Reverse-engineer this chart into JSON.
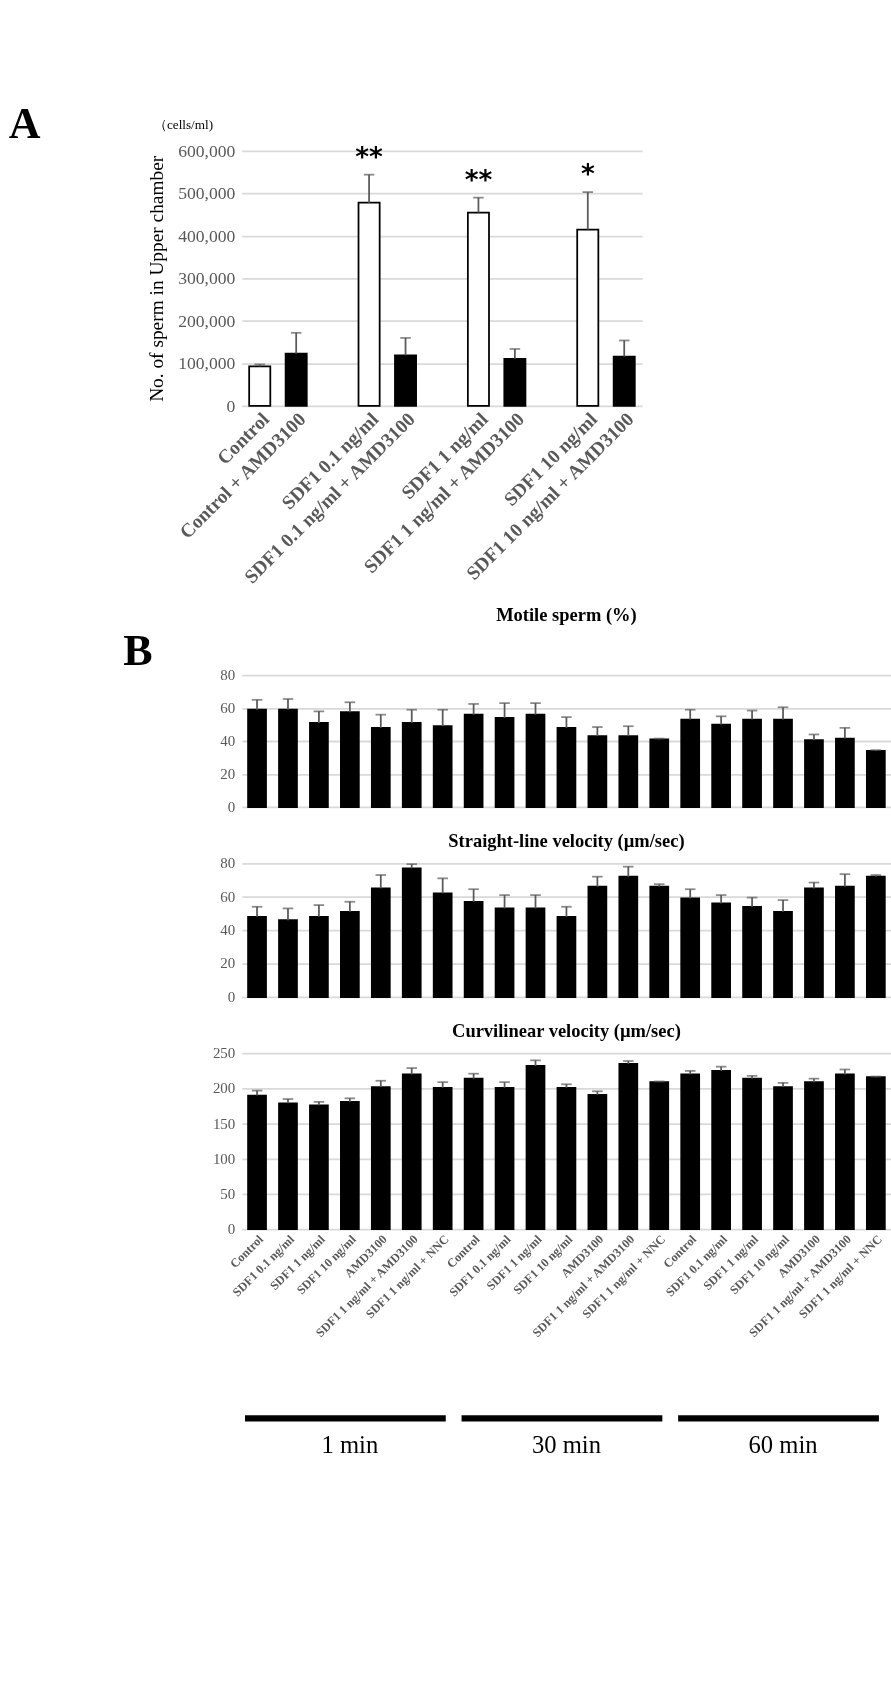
{
  "chart_data": [
    {
      "type": "bar",
      "ylabel": "No. of sperm in Upper chamber",
      "categories": [
        "Control",
        "Control + AMD3100",
        "SDF1 0.1 ng/ml",
        "SDF1 0.1 ng/ml + AMD3100",
        "SDF1 1 ng/ml",
        "SDF1 1 ng/ml + AMD3100",
        "SDF1 10 ng/ml",
        "SDF1 10 ng/ml + AMD3100"
      ],
      "values": [
        93000,
        123000,
        478000,
        119000,
        455000,
        111000,
        415000,
        116000
      ],
      "colors": [
        "#ffffff",
        "#000000",
        "#ffffff",
        "#000000",
        "#ffffff",
        "#000000",
        "#ffffff",
        "#000000"
      ],
      "errors": [
        [
          93000,
          98000
        ],
        [
          123000,
          172000
        ],
        [
          478000,
          544000
        ],
        [
          119000,
          160000
        ],
        [
          455000,
          490000
        ],
        [
          111000,
          134000
        ],
        [
          415000,
          503000
        ],
        [
          116000,
          154000
        ]
      ],
      "ylim": [
        0,
        600000
      ],
      "yticks": [
        0,
        {
          "value": 100000,
          "label": "100,000"
        },
        {
          "value": 200000,
          "label": "200,000"
        },
        {
          "value": 300000,
          "label": "300,000"
        },
        {
          "value": 400000,
          "label": "400,000"
        },
        {
          "value": 500000,
          "label": "500,000"
        },
        {
          "value": 600000,
          "label": "600,000"
        }
      ],
      "grid": "y",
      "annotations": [
        "A",
        "（cells/ml)",
        {
          "text": "**",
          "x": "SDF1 0.1 ng/ml",
          "y": 544000
        },
        {
          "text": "**",
          "x": "SDF1 1 ng/ml",
          "y": 490000
        },
        {
          "text": "*",
          "x": "SDF1 10 ng/ml",
          "y": 503000
        }
      ]
    },
    {
      "type": "bar",
      "title": "Motile sperm (%)",
      "color": "#000000",
      "categories": [
        "Control",
        "SDF1 0.1 ng/ml",
        "SDF1 1 ng/ml",
        "SDF1 10 ng/ml",
        "AMD3100",
        "SDF1 1 ng/ml + AMD3100",
        "SDF1 1 ng/ml + NNC",
        "Control",
        "SDF1 0.1 ng/ml",
        "SDF1 1 ng/ml",
        "SDF1 10 ng/ml",
        "AMD3100",
        "SDF1 1 ng/ml + AMD3100",
        "SDF1 1 ng/ml + NNC",
        "Control",
        "SDF1 0.1 ng/ml",
        "SDF1 1 ng/ml",
        "SDF1 10 ng/ml",
        "AMD3100",
        "SDF1 1 ng/ml + AMD3100",
        "SDF1 1 ng/ml + NNC"
      ],
      "values": [
        59,
        59,
        51,
        57.5,
        48,
        51,
        49,
        56,
        54,
        56,
        48,
        43,
        43,
        41,
        53,
        50,
        53,
        53,
        40.5,
        41.5,
        34
      ],
      "errors": [
        [
          59,
          65
        ],
        [
          59,
          65.5
        ],
        [
          51,
          58
        ],
        [
          57.5,
          63.5
        ],
        [
          48,
          56
        ],
        [
          51,
          59
        ],
        [
          49,
          59
        ],
        [
          56,
          62.5
        ],
        [
          54,
          63
        ],
        [
          56,
          63
        ],
        [
          48,
          54.5
        ],
        [
          43,
          48.5
        ],
        [
          43,
          49
        ],
        [
          41,
          41.5
        ],
        [
          53,
          59
        ],
        [
          50,
          55
        ],
        [
          53,
          58.5
        ],
        [
          53,
          60.5
        ],
        [
          40.5,
          44
        ],
        [
          41.5,
          48
        ],
        [
          34,
          34.5
        ]
      ],
      "ylim": [
        0,
        80
      ],
      "yticks": [
        0,
        20,
        40,
        60,
        80
      ],
      "grid": "y",
      "tick_labels": "y",
      "annotations": [
        "B"
      ]
    },
    {
      "type": "bar",
      "title": "Straight-line velocity (µm/sec)",
      "color": "#000000",
      "categories": [
        "Control",
        "SDF1 0.1 ng/ml",
        "SDF1 1 ng/ml",
        "SDF1 10 ng/ml",
        "AMD3100",
        "SDF1 1 ng/ml + AMD3100",
        "SDF1 1 ng/ml + NNC",
        "Control",
        "SDF1 0.1 ng/ml",
        "SDF1 1 ng/ml",
        "SDF1 10 ng/ml",
        "AMD3100",
        "SDF1 1 ng/ml + AMD3100",
        "SDF1 1 ng/ml + NNC",
        "Control",
        "SDF1 0.1 ng/ml",
        "SDF1 1 ng/ml",
        "SDF1 10 ng/ml",
        "AMD3100",
        "SDF1 1 ng/ml + AMD3100",
        "SDF1 1 ng/ml + NNC"
      ],
      "values": [
        48,
        46,
        48,
        51,
        65,
        77,
        62,
        57,
        53,
        53,
        48,
        66,
        72,
        66,
        59,
        56,
        54,
        51,
        65,
        66,
        72
      ],
      "errors": [
        [
          48,
          54
        ],
        [
          46,
          53
        ],
        [
          48,
          55
        ],
        [
          51,
          57
        ],
        [
          65,
          73
        ],
        [
          77,
          79.5
        ],
        [
          62,
          71
        ],
        [
          57,
          64.5
        ],
        [
          53,
          61
        ],
        [
          53,
          61
        ],
        [
          48,
          54
        ],
        [
          66,
          72
        ],
        [
          72,
          78
        ],
        [
          66,
          67.5
        ],
        [
          59,
          64.5
        ],
        [
          56,
          61
        ],
        [
          54,
          59.5
        ],
        [
          51,
          58
        ],
        [
          65,
          68.5
        ],
        [
          66,
          73.5
        ],
        [
          72,
          73
        ]
      ],
      "ylim": [
        0,
        80
      ],
      "yticks": [
        0,
        20,
        40,
        60,
        80
      ],
      "grid": "y",
      "tick_labels": "y"
    },
    {
      "type": "bar",
      "title": "Curvilinear velocity (µm/sec)",
      "color": "#000000",
      "categories": [
        "Control",
        "SDF1 0.1 ng/ml",
        "SDF1 1 ng/ml",
        "SDF1 10 ng/ml",
        "AMD3100",
        "SDF1 1 ng/ml + AMD3100",
        "SDF1 1 ng/ml + NNC",
        "Control",
        "SDF1 0.1 ng/ml",
        "SDF1 1 ng/ml",
        "SDF1 10 ng/ml",
        "AMD3100",
        "SDF1 1 ng/ml + AMD3100",
        "SDF1 1 ng/ml + NNC",
        "Control",
        "SDF1 0.1 ng/ml",
        "SDF1 1 ng/ml",
        "SDF1 10 ng/ml",
        "AMD3100",
        "SDF1 1 ng/ml + AMD3100",
        "SDF1 1 ng/ml + NNC"
      ],
      "values": [
        190,
        179,
        176,
        181,
        202,
        220,
        201,
        214,
        201,
        232,
        201,
        191,
        235,
        209,
        220,
        225,
        214,
        202,
        209,
        220,
        216
      ],
      "errors": [
        [
          190,
          197
        ],
        [
          179,
          185
        ],
        [
          176,
          181
        ],
        [
          181,
          186
        ],
        [
          202,
          211
        ],
        [
          220,
          229
        ],
        [
          201,
          209
        ],
        [
          214,
          221
        ],
        [
          201,
          209
        ],
        [
          232,
          240
        ],
        [
          201,
          206
        ],
        [
          191,
          196
        ],
        [
          235,
          239
        ],
        [
          209,
          210
        ],
        [
          220,
          225
        ],
        [
          225,
          231
        ],
        [
          214,
          218
        ],
        [
          202,
          208
        ],
        [
          209,
          214
        ],
        [
          220,
          227
        ],
        [
          216,
          217
        ]
      ],
      "ylim": [
        0,
        250
      ],
      "yticks": [
        0,
        50,
        100,
        150,
        200,
        250
      ],
      "grid": "y",
      "annotations": [
        "1 min",
        "30 min",
        "60 min"
      ]
    }
  ]
}
